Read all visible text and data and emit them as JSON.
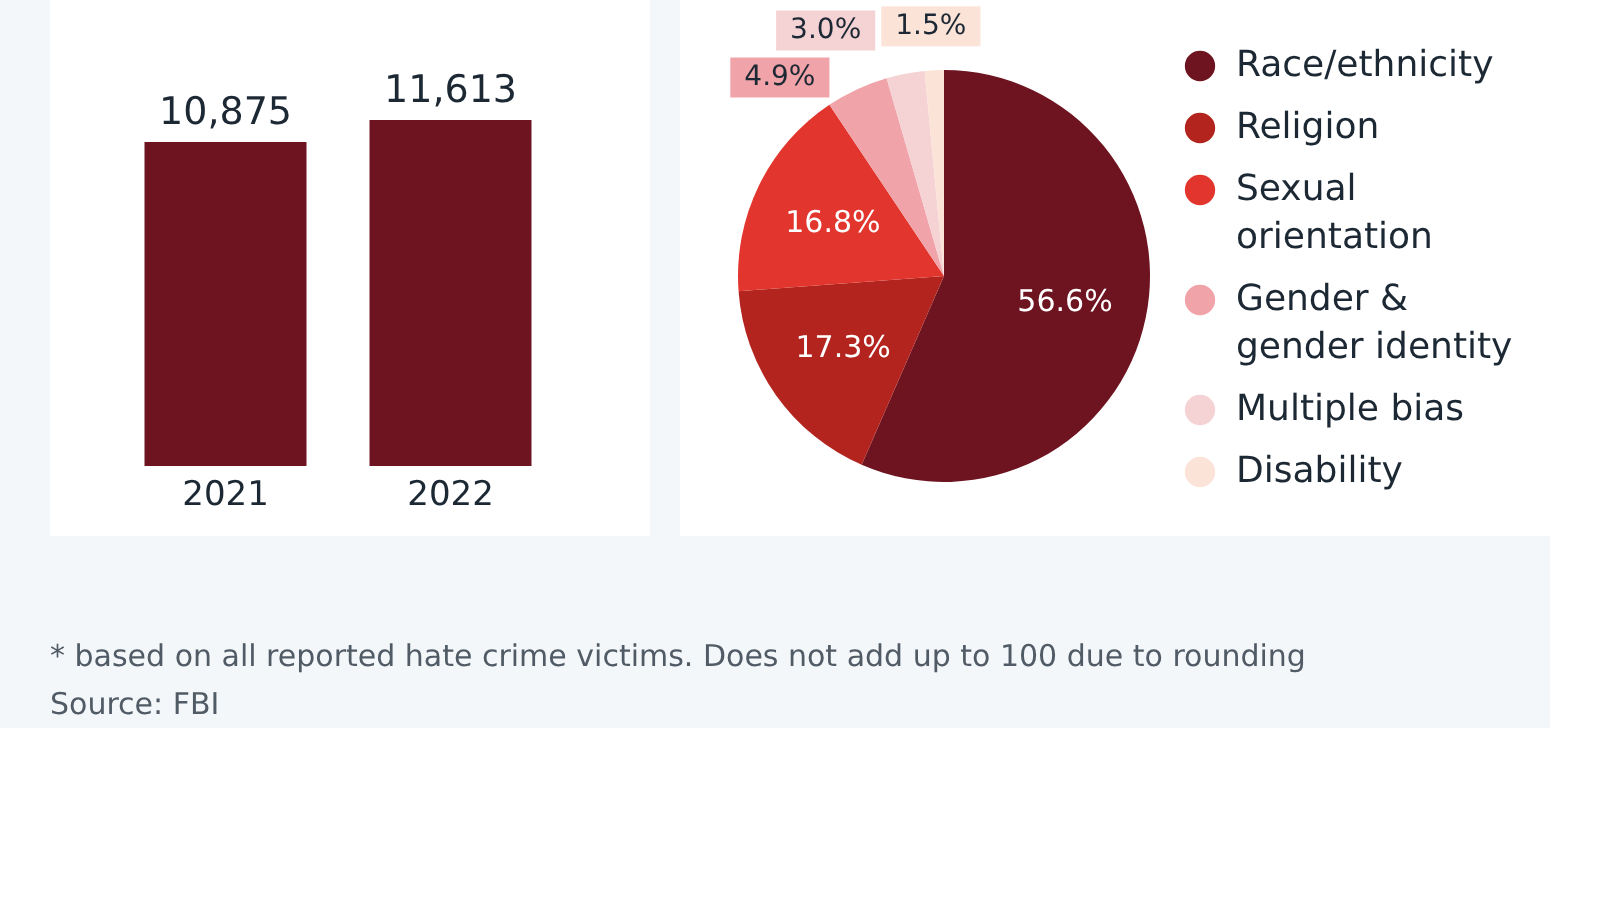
{
  "chart_data": [
    {
      "type": "bar",
      "categories": [
        "2021",
        "2022"
      ],
      "values": [
        10875,
        11613
      ],
      "color": "#6d1420",
      "value_labels": [
        "10,875",
        "11,613"
      ],
      "tick_labels": "x"
    },
    {
      "type": "pie",
      "categories": [
        "Race/ethnicity",
        "Religion",
        "Sexual orientation",
        "Gender & gender identity",
        "Multiple bias",
        "Disability"
      ],
      "values": [
        56.6,
        17.3,
        16.8,
        4.9,
        3.0,
        1.5
      ],
      "colors": [
        "#6d1420",
        "#b3241f",
        "#e2352d",
        "#f0a3a8",
        "#f5d2d4",
        "#fce3d8"
      ],
      "value_labels": [
        "56.6%",
        "17.3%",
        "16.8%",
        "4.9%",
        "3.0%",
        "1.5%"
      ],
      "legend": "right",
      "annotations": [
        "* based on all reported hate crime victims. Does not add up to 100 due to rounding",
        "Source: FBI"
      ]
    }
  ]
}
